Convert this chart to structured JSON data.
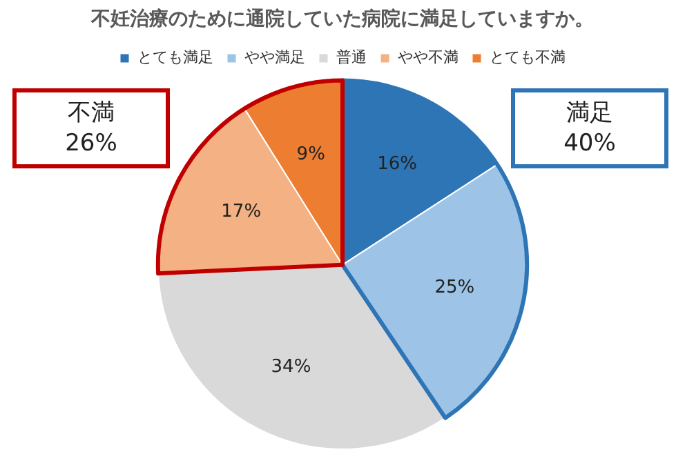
{
  "chart_data": {
    "type": "pie",
    "title": "不妊治療のために通院していた病院に満足していますか。",
    "categories": [
      "とても満足",
      "やや満足",
      "普通",
      "やや不満",
      "とても不満"
    ],
    "values": [
      16,
      25,
      34,
      17,
      9
    ],
    "colors": [
      "#2e75b6",
      "#9dc3e6",
      "#d9d9d9",
      "#f4b183",
      "#ed7d31"
    ],
    "value_labels": [
      "16%",
      "25%",
      "34%",
      "17%",
      "9%"
    ],
    "legend": "top",
    "annotations": [
      "満足\n40%",
      "不満\n26%"
    ]
  }
}
